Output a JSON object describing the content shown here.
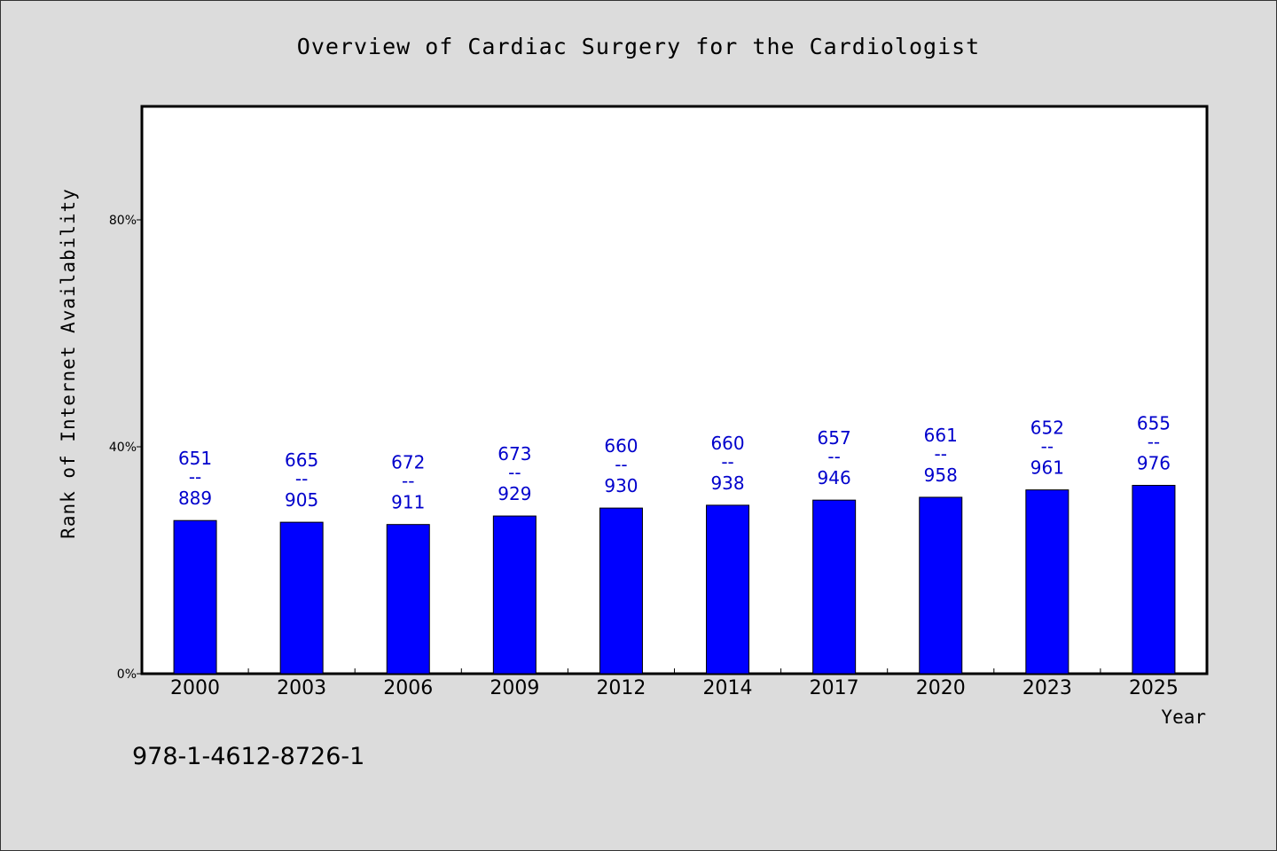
{
  "chart_data": {
    "type": "bar",
    "title": "Overview of Cardiac Surgery for the Cardiologist",
    "xlabel": "Year",
    "ylabel": "Rank of Internet Availability",
    "categories": [
      "2000",
      "2003",
      "2006",
      "2009",
      "2012",
      "2014",
      "2017",
      "2020",
      "2023",
      "2025"
    ],
    "values": [
      27,
      26.7,
      26.3,
      27.8,
      29.2,
      29.7,
      30.6,
      31.1,
      32.4,
      33.2
    ],
    "value_unit": "%",
    "data_labels": [
      {
        "top": "651",
        "sep": "--",
        "bottom": "889"
      },
      {
        "top": "665",
        "sep": "--",
        "bottom": "905"
      },
      {
        "top": "672",
        "sep": "--",
        "bottom": "911"
      },
      {
        "top": "673",
        "sep": "--",
        "bottom": "929"
      },
      {
        "top": "660",
        "sep": "--",
        "bottom": "930"
      },
      {
        "top": "660",
        "sep": "--",
        "bottom": "938"
      },
      {
        "top": "657",
        "sep": "--",
        "bottom": "946"
      },
      {
        "top": "661",
        "sep": "--",
        "bottom": "958"
      },
      {
        "top": "652",
        "sep": "--",
        "bottom": "961"
      },
      {
        "top": "655",
        "sep": "--",
        "bottom": "976"
      }
    ],
    "ylim": [
      0,
      100
    ],
    "yticks": [
      {
        "value": 0,
        "label": "0%"
      },
      {
        "value": 40,
        "label": "40%"
      },
      {
        "value": 80,
        "label": "80%"
      }
    ],
    "grid": false,
    "legend": "none",
    "colors": {
      "bar": "#0000ff",
      "label": "#0000cc",
      "background": "#dcdcdc",
      "plot": "#ffffff"
    }
  },
  "footnote": "978-1-4612-8726-1"
}
